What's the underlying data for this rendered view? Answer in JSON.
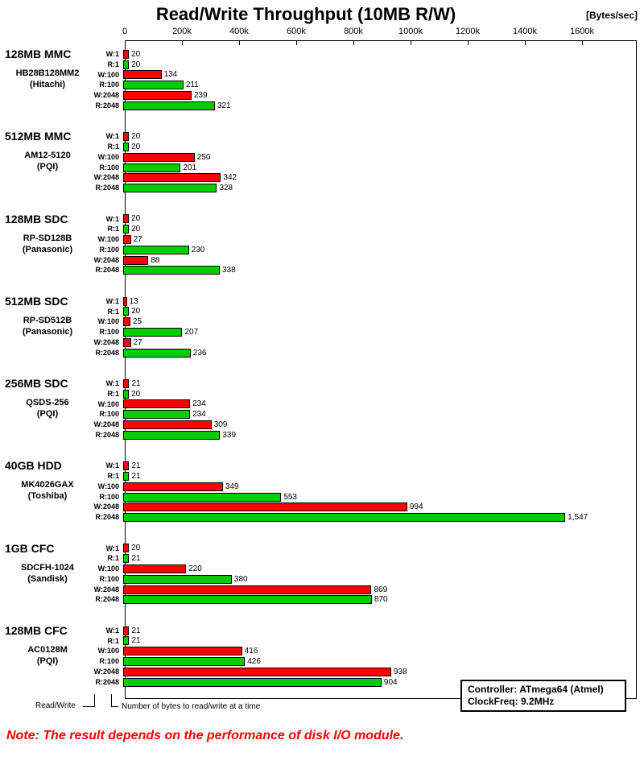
{
  "chart_data": {
    "type": "bar",
    "orientation": "horizontal",
    "title": "Read/Write Throughput (10MB R/W)",
    "unit_label": "[Bytes/sec]",
    "x_ticks": [
      "0",
      "200k",
      "400k",
      "600k",
      "800k",
      "1000k",
      "1200k",
      "1400k",
      "1600k"
    ],
    "x_range_k": [
      0,
      1600
    ],
    "grid": false,
    "bar_labels": [
      "W:1",
      "R:1",
      "W:100",
      "R:100",
      "W:2048",
      "R:2048"
    ],
    "colors": {
      "write": "#FF0000",
      "read": "#00CC00"
    },
    "groups": [
      {
        "name": "128MB MMC",
        "model": "HB28B128MM2",
        "maker": "(Hitachi)",
        "values": [
          20,
          20,
          134,
          211,
          239,
          321
        ]
      },
      {
        "name": "512MB MMC",
        "model": "AM12-5120",
        "maker": "(PQI)",
        "values": [
          20,
          20,
          250,
          201,
          342,
          328
        ]
      },
      {
        "name": "128MB SDC",
        "model": "RP-SD128B",
        "maker": "(Panasonic)",
        "values": [
          20,
          20,
          27,
          230,
          88,
          338
        ]
      },
      {
        "name": "512MB SDC",
        "model": "RP-SD512B",
        "maker": "(Panasonic)",
        "values": [
          13,
          20,
          25,
          207,
          27,
          236
        ]
      },
      {
        "name": "256MB SDC",
        "model": "QSDS-256",
        "maker": "(PQI)",
        "values": [
          21,
          20,
          234,
          234,
          309,
          339
        ]
      },
      {
        "name": "40GB HDD",
        "model": "MK4026GAX",
        "maker": "(Toshiba)",
        "values": [
          21,
          21,
          349,
          553,
          994,
          1547
        ]
      },
      {
        "name": "1GB CFC",
        "model": "SDCFH-1024",
        "maker": "(Sandisk)",
        "values": [
          20,
          21,
          220,
          380,
          869,
          870
        ]
      },
      {
        "name": "128MB CFC",
        "model": "AC0128M",
        "maker": "(PQI)",
        "values": [
          21,
          21,
          416,
          426,
          938,
          904
        ]
      }
    ],
    "footer": {
      "read_write_label": "Read/Write",
      "bytes_label": "Number of bytes to read/write at a time"
    },
    "legend_box": {
      "line1": "Controller: ATmega64 (Atmel)",
      "line2": "ClockFreq: 9.2MHz"
    },
    "note": "Note: The result depends on the performance of disk I/O module."
  }
}
